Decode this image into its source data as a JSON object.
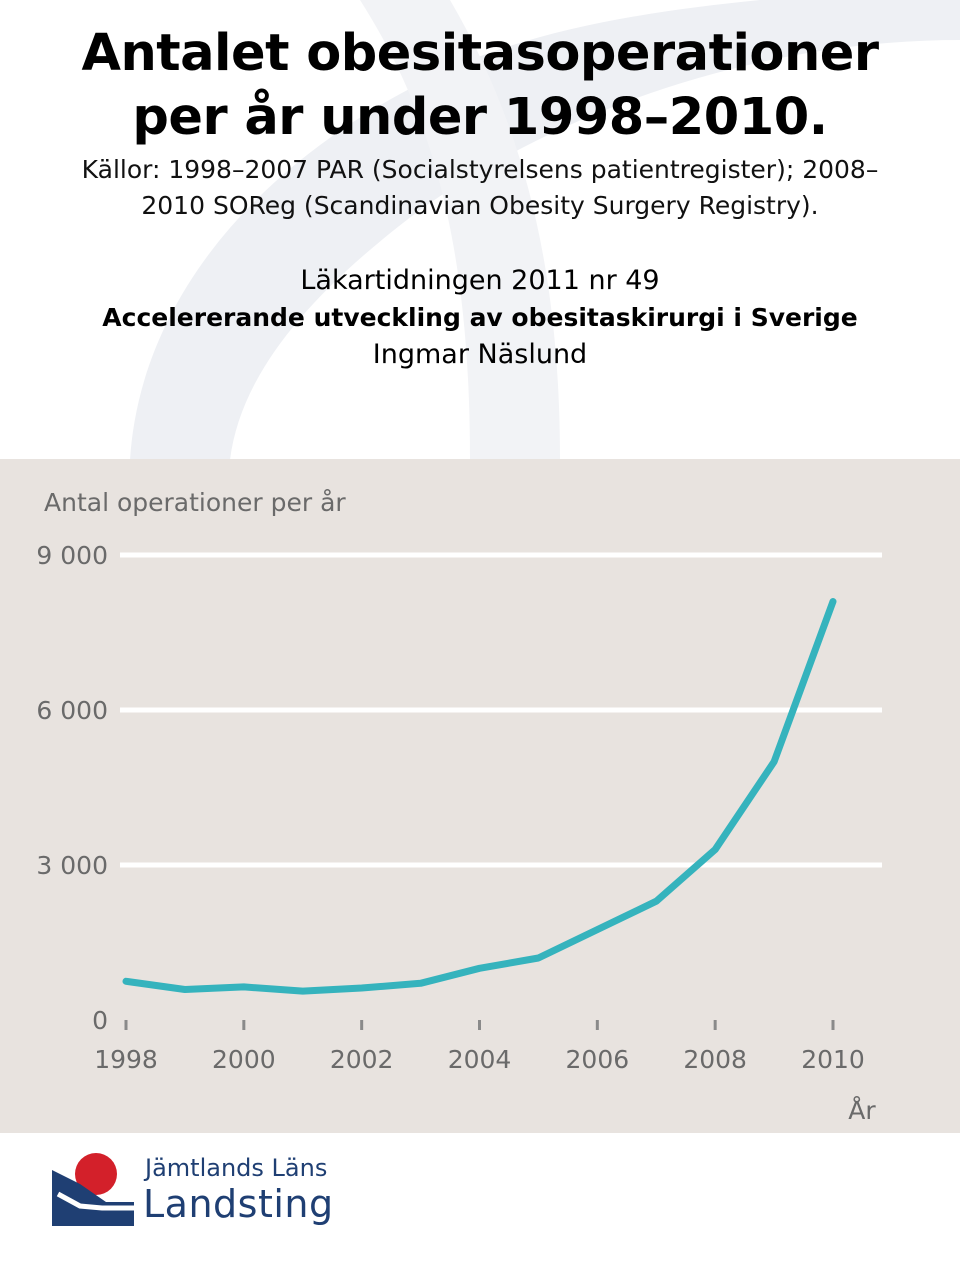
{
  "slide": {
    "title_line1": "Antalet obesitasoperationer",
    "title_line2": "per år under 1998–2010.",
    "sources_line1": "Källor: 1998–2007 PAR (Socialstyrelsens patientregister); 2008–",
    "sources_line2": "2010 SOReg (Scandinavian Obesity Surgery Registry).",
    "journal": "Läkartidningen 2011 nr 49",
    "article_title": "Accelererande utveckling av obesitaskirurgi i Sverige",
    "author": "Ingmar Näslund"
  },
  "logo": {
    "line1": "Jämtlands Läns",
    "line2": "Landsting"
  },
  "colors": {
    "line": "#35b3bd",
    "panel": "#e8e3df",
    "grid": "#ffffff",
    "axis_text": "#6a6a6a",
    "logo_blue": "#1f3f73",
    "logo_red": "#d3202a"
  },
  "chart_data": {
    "type": "line",
    "ylabel": "Antal operationer per år",
    "xlabel": "År",
    "x": [
      1998,
      1999,
      2000,
      2001,
      2002,
      2003,
      2004,
      2005,
      2006,
      2007,
      2008,
      2009,
      2010
    ],
    "series": [
      {
        "values": [
          750,
          590,
          640,
          560,
          620,
          710,
          1000,
          1200,
          1750,
          2300,
          3300,
          5000,
          8100
        ]
      }
    ],
    "xticks": [
      "1998",
      "2000",
      "2002",
      "2004",
      "2006",
      "2008",
      "2010"
    ],
    "yticks": [
      "0",
      "3 000",
      "6 000",
      "9 000"
    ],
    "ytick_values": [
      0,
      3000,
      6000,
      9000
    ],
    "ylim": [
      0,
      9000
    ],
    "xlim": [
      1998,
      2010
    ],
    "grid": true
  }
}
